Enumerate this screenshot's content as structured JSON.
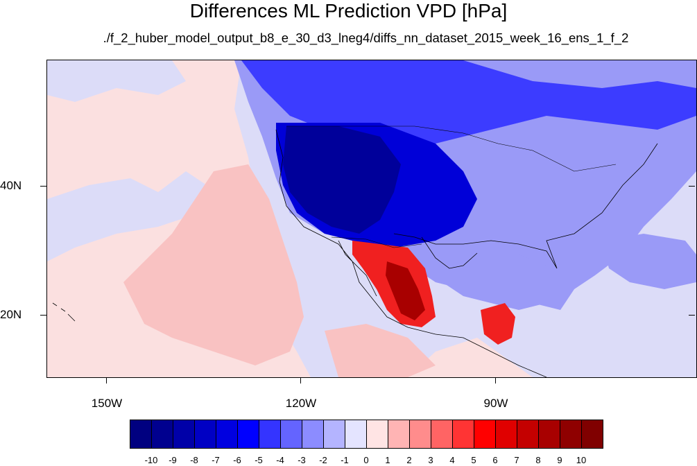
{
  "title": "Differences ML Prediction VPD [hPa]",
  "subtitle": "./f_2_huber_model_output_b8_e_30_d3_lneg4/diffs_nn_dataset_2015_week_16_ens_1_f_2",
  "axes": {
    "lat_labels": [
      "40N",
      "20N"
    ],
    "lon_labels": [
      "150W",
      "120W",
      "90W"
    ],
    "lon_range": [
      -160,
      -60
    ],
    "lat_range": [
      10,
      59
    ]
  },
  "colorbar": {
    "levels": [
      "-10",
      "-9",
      "-8",
      "-7",
      "-6",
      "-5",
      "-4",
      "-3",
      "-2",
      "-1",
      "0",
      "1",
      "2",
      "3",
      "4",
      "5",
      "6",
      "7",
      "8",
      "9",
      "10"
    ],
    "colors": [
      "#000080",
      "#00008f",
      "#0000a8",
      "#0000c4",
      "#0000e0",
      "#0000ff",
      "#3434ff",
      "#6464ff",
      "#8c8cff",
      "#b4b4ff",
      "#e4e4ff",
      "#ffe4e4",
      "#ffb4b4",
      "#ff8c8c",
      "#ff6464",
      "#ff3434",
      "#ff0000",
      "#e00000",
      "#c40000",
      "#a80000",
      "#8f0000",
      "#800000"
    ]
  },
  "field_colors": {
    "light_pink": "#fbe0e0",
    "pink": "#f9c2c2",
    "light_blue": "#dcdcf8",
    "mid_blue": "#9a9af7",
    "blue": "#3c3cff",
    "strong_blue": "#0000d8",
    "dark_blue": "#00009a",
    "red": "#f02020",
    "dark_red": "#a80000"
  }
}
